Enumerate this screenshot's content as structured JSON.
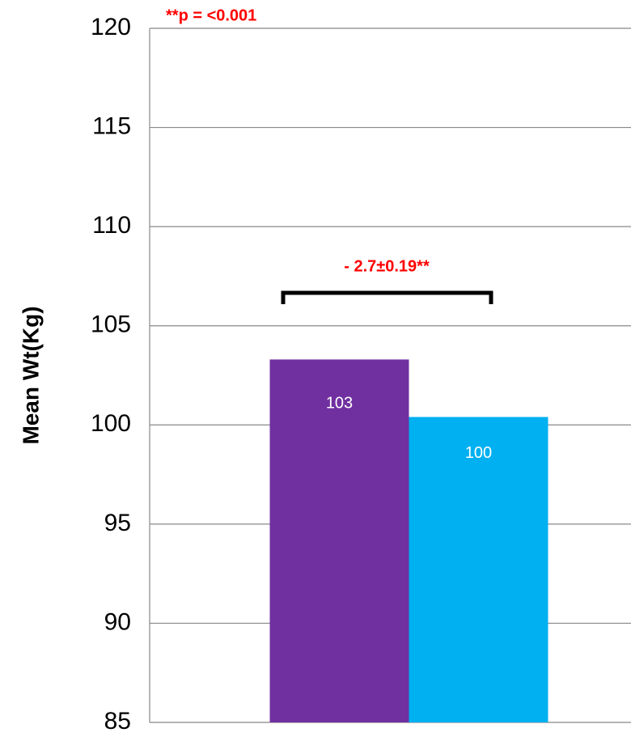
{
  "chart_data": {
    "type": "bar",
    "y_label": "Mean Wt(Kg)",
    "annotations": [
      "**p = <0.001",
      "- 2.7±0.19**"
    ],
    "categories": [
      null
    ],
    "series": [
      {
        "color": "#7030a0",
        "values": [
          103.3
        ],
        "value_labels": [
          "103"
        ]
      },
      {
        "color": "#00b0f0",
        "values": [
          100.4
        ],
        "value_labels": [
          "100"
        ]
      }
    ],
    "ylim": [
      85,
      120
    ],
    "yticks": [
      85,
      90,
      95,
      100,
      105,
      110,
      115,
      120
    ],
    "grid": true
  }
}
